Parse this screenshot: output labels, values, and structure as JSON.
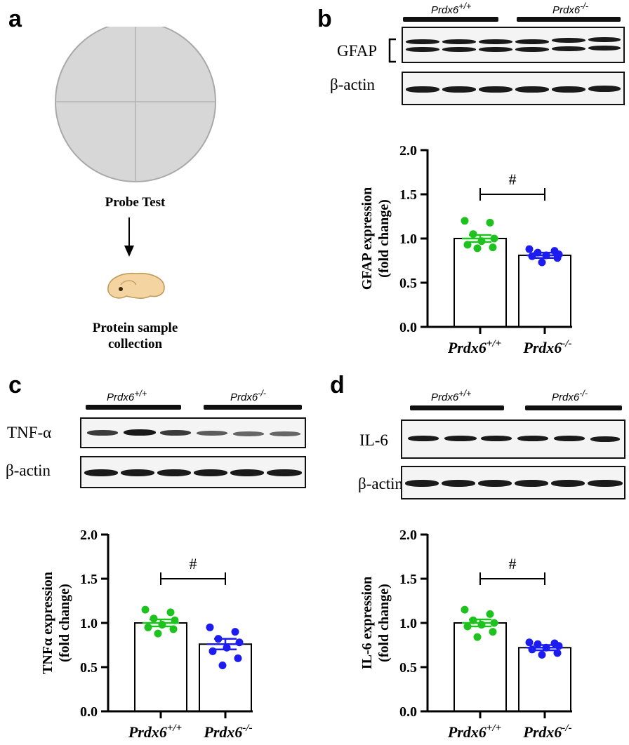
{
  "panel_a": {
    "letter": "a",
    "probe_test": "Probe Test",
    "protein_line1": "Protein sample",
    "protein_line2": "collection"
  },
  "panel_b": {
    "letter": "b",
    "group1": "Prdx6",
    "group1_sup": "+/+",
    "group2": "Prdx6",
    "group2_sup": "-/-",
    "row1": "GFAP",
    "row2": "β-actin"
  },
  "panel_c": {
    "letter": "c",
    "group1": "Prdx6",
    "group1_sup": "+/+",
    "group2": "Prdx6",
    "group2_sup": "-/-",
    "row1": "TNF-α",
    "row2": "β-actin"
  },
  "panel_d": {
    "letter": "d",
    "group1": "Prdx6",
    "group1_sup": "+/+",
    "group2": "Prdx6",
    "group2_sup": "-/-",
    "row1": "IL-6",
    "row2": "β-actin"
  },
  "colors": {
    "wt": "#1ec21e",
    "ko": "#1c1cf0",
    "axis": "#000000"
  },
  "chart_data": [
    {
      "type": "bar",
      "panel": "b",
      "ylabel_line1": "GFAP expression",
      "ylabel_line2": "(fold change)",
      "ylim": [
        0,
        2.0
      ],
      "yticks": [
        "0.0",
        "0.5",
        "1.0",
        "1.5",
        "2.0"
      ],
      "categories": [
        "Prdx6",
        "Prdx6"
      ],
      "category_sups": [
        "+/+",
        "-/-"
      ],
      "values": [
        1.0,
        0.81
      ],
      "sem": [
        0.04,
        0.03
      ],
      "points": [
        [
          1.2,
          1.18,
          1.05,
          1.0,
          0.97,
          0.93,
          0.9,
          0.89
        ],
        [
          0.88,
          0.86,
          0.84,
          0.82,
          0.81,
          0.8,
          0.78,
          0.73
        ]
      ],
      "significance": "#"
    },
    {
      "type": "bar",
      "panel": "c",
      "ylabel_line1": "TNFα expression",
      "ylabel_line2": "(fold change)",
      "ylim": [
        0,
        2.0
      ],
      "yticks": [
        "0.0",
        "0.5",
        "1.0",
        "1.5",
        "2.0"
      ],
      "categories": [
        "Prdx6",
        "Prdx6"
      ],
      "category_sups": [
        "+/+",
        "-/-"
      ],
      "values": [
        1.0,
        0.76
      ],
      "sem": [
        0.04,
        0.06
      ],
      "points": [
        [
          1.15,
          1.12,
          1.05,
          1.03,
          0.98,
          0.95,
          0.93,
          0.88
        ],
        [
          0.95,
          0.9,
          0.82,
          0.78,
          0.72,
          0.68,
          0.6,
          0.52
        ]
      ],
      "significance": "#"
    },
    {
      "type": "bar",
      "panel": "d",
      "ylabel_line1": "IL-6 expression",
      "ylabel_line2": "(fold change)",
      "ylim": [
        0,
        2.0
      ],
      "yticks": [
        "0.0",
        "0.5",
        "1.0",
        "1.5",
        "2.0"
      ],
      "categories": [
        "Prdx6",
        "Prdx6"
      ],
      "category_sups": [
        "+/+",
        "-/-"
      ],
      "values": [
        1.0,
        0.72
      ],
      "sem": [
        0.04,
        0.03
      ],
      "points": [
        [
          1.15,
          1.1,
          1.03,
          1.0,
          0.98,
          0.96,
          0.9,
          0.84
        ],
        [
          0.78,
          0.77,
          0.76,
          0.74,
          0.72,
          0.7,
          0.66,
          0.64
        ]
      ],
      "significance": "#"
    }
  ]
}
